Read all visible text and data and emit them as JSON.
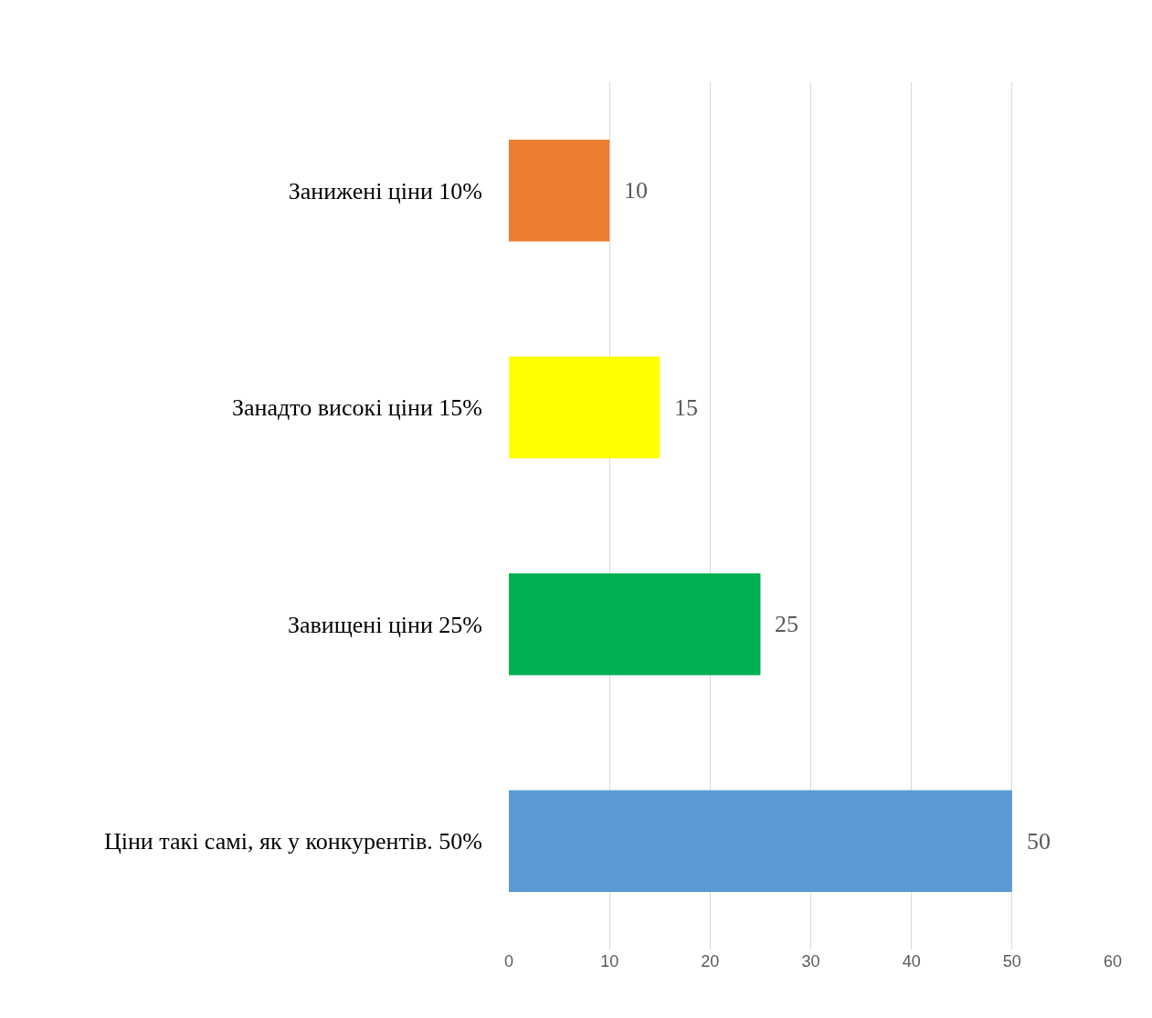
{
  "chart_data": {
    "type": "bar",
    "orientation": "horizontal",
    "categories": [
      "Занижені ціни 10%",
      "Занадто високі ціни 15%",
      "Завищені ціни 25%",
      "Ціни такі самі, як у конкурентів. 50%"
    ],
    "values": [
      10,
      15,
      25,
      50
    ],
    "colors": [
      "#ed7d31",
      "#ffff00",
      "#00b050",
      "#5b9bd5"
    ],
    "xlim": [
      0,
      60
    ],
    "xticks": [
      0,
      10,
      20,
      30,
      40,
      50,
      60
    ],
    "grid": "x",
    "data_labels": true
  }
}
